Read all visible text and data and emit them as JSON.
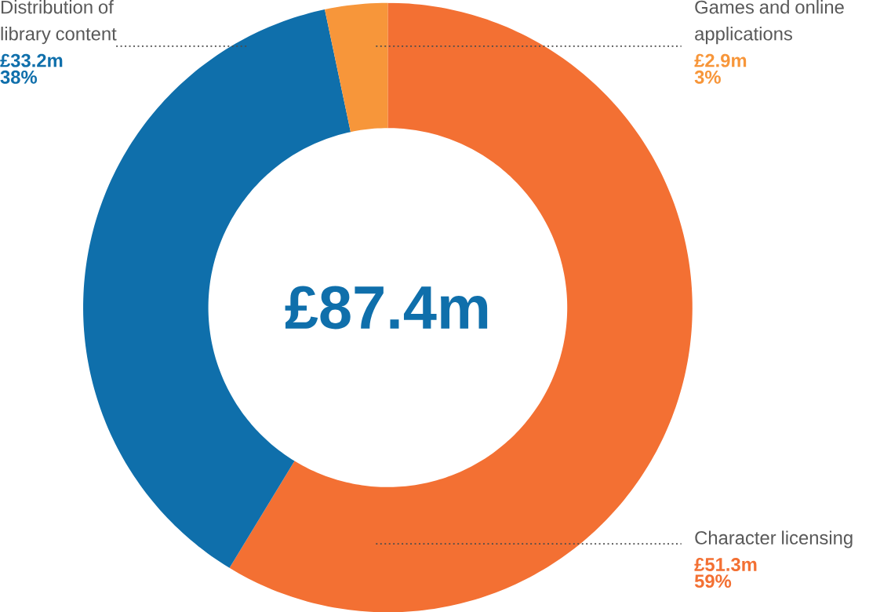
{
  "chart_data": {
    "type": "donut",
    "categories": [
      "Character licensing",
      "Distribution of library content",
      "Games and online applications"
    ],
    "values": [
      51.3,
      33.2,
      2.9
    ],
    "colors": [
      "#f37033",
      "#0f6fab",
      "#f7963a"
    ],
    "value_labels": [
      "£51.3m",
      "£33.2m",
      "£2.9m"
    ],
    "annotations": [
      "£87.4m",
      "59%",
      "38%",
      "3%"
    ]
  }
}
